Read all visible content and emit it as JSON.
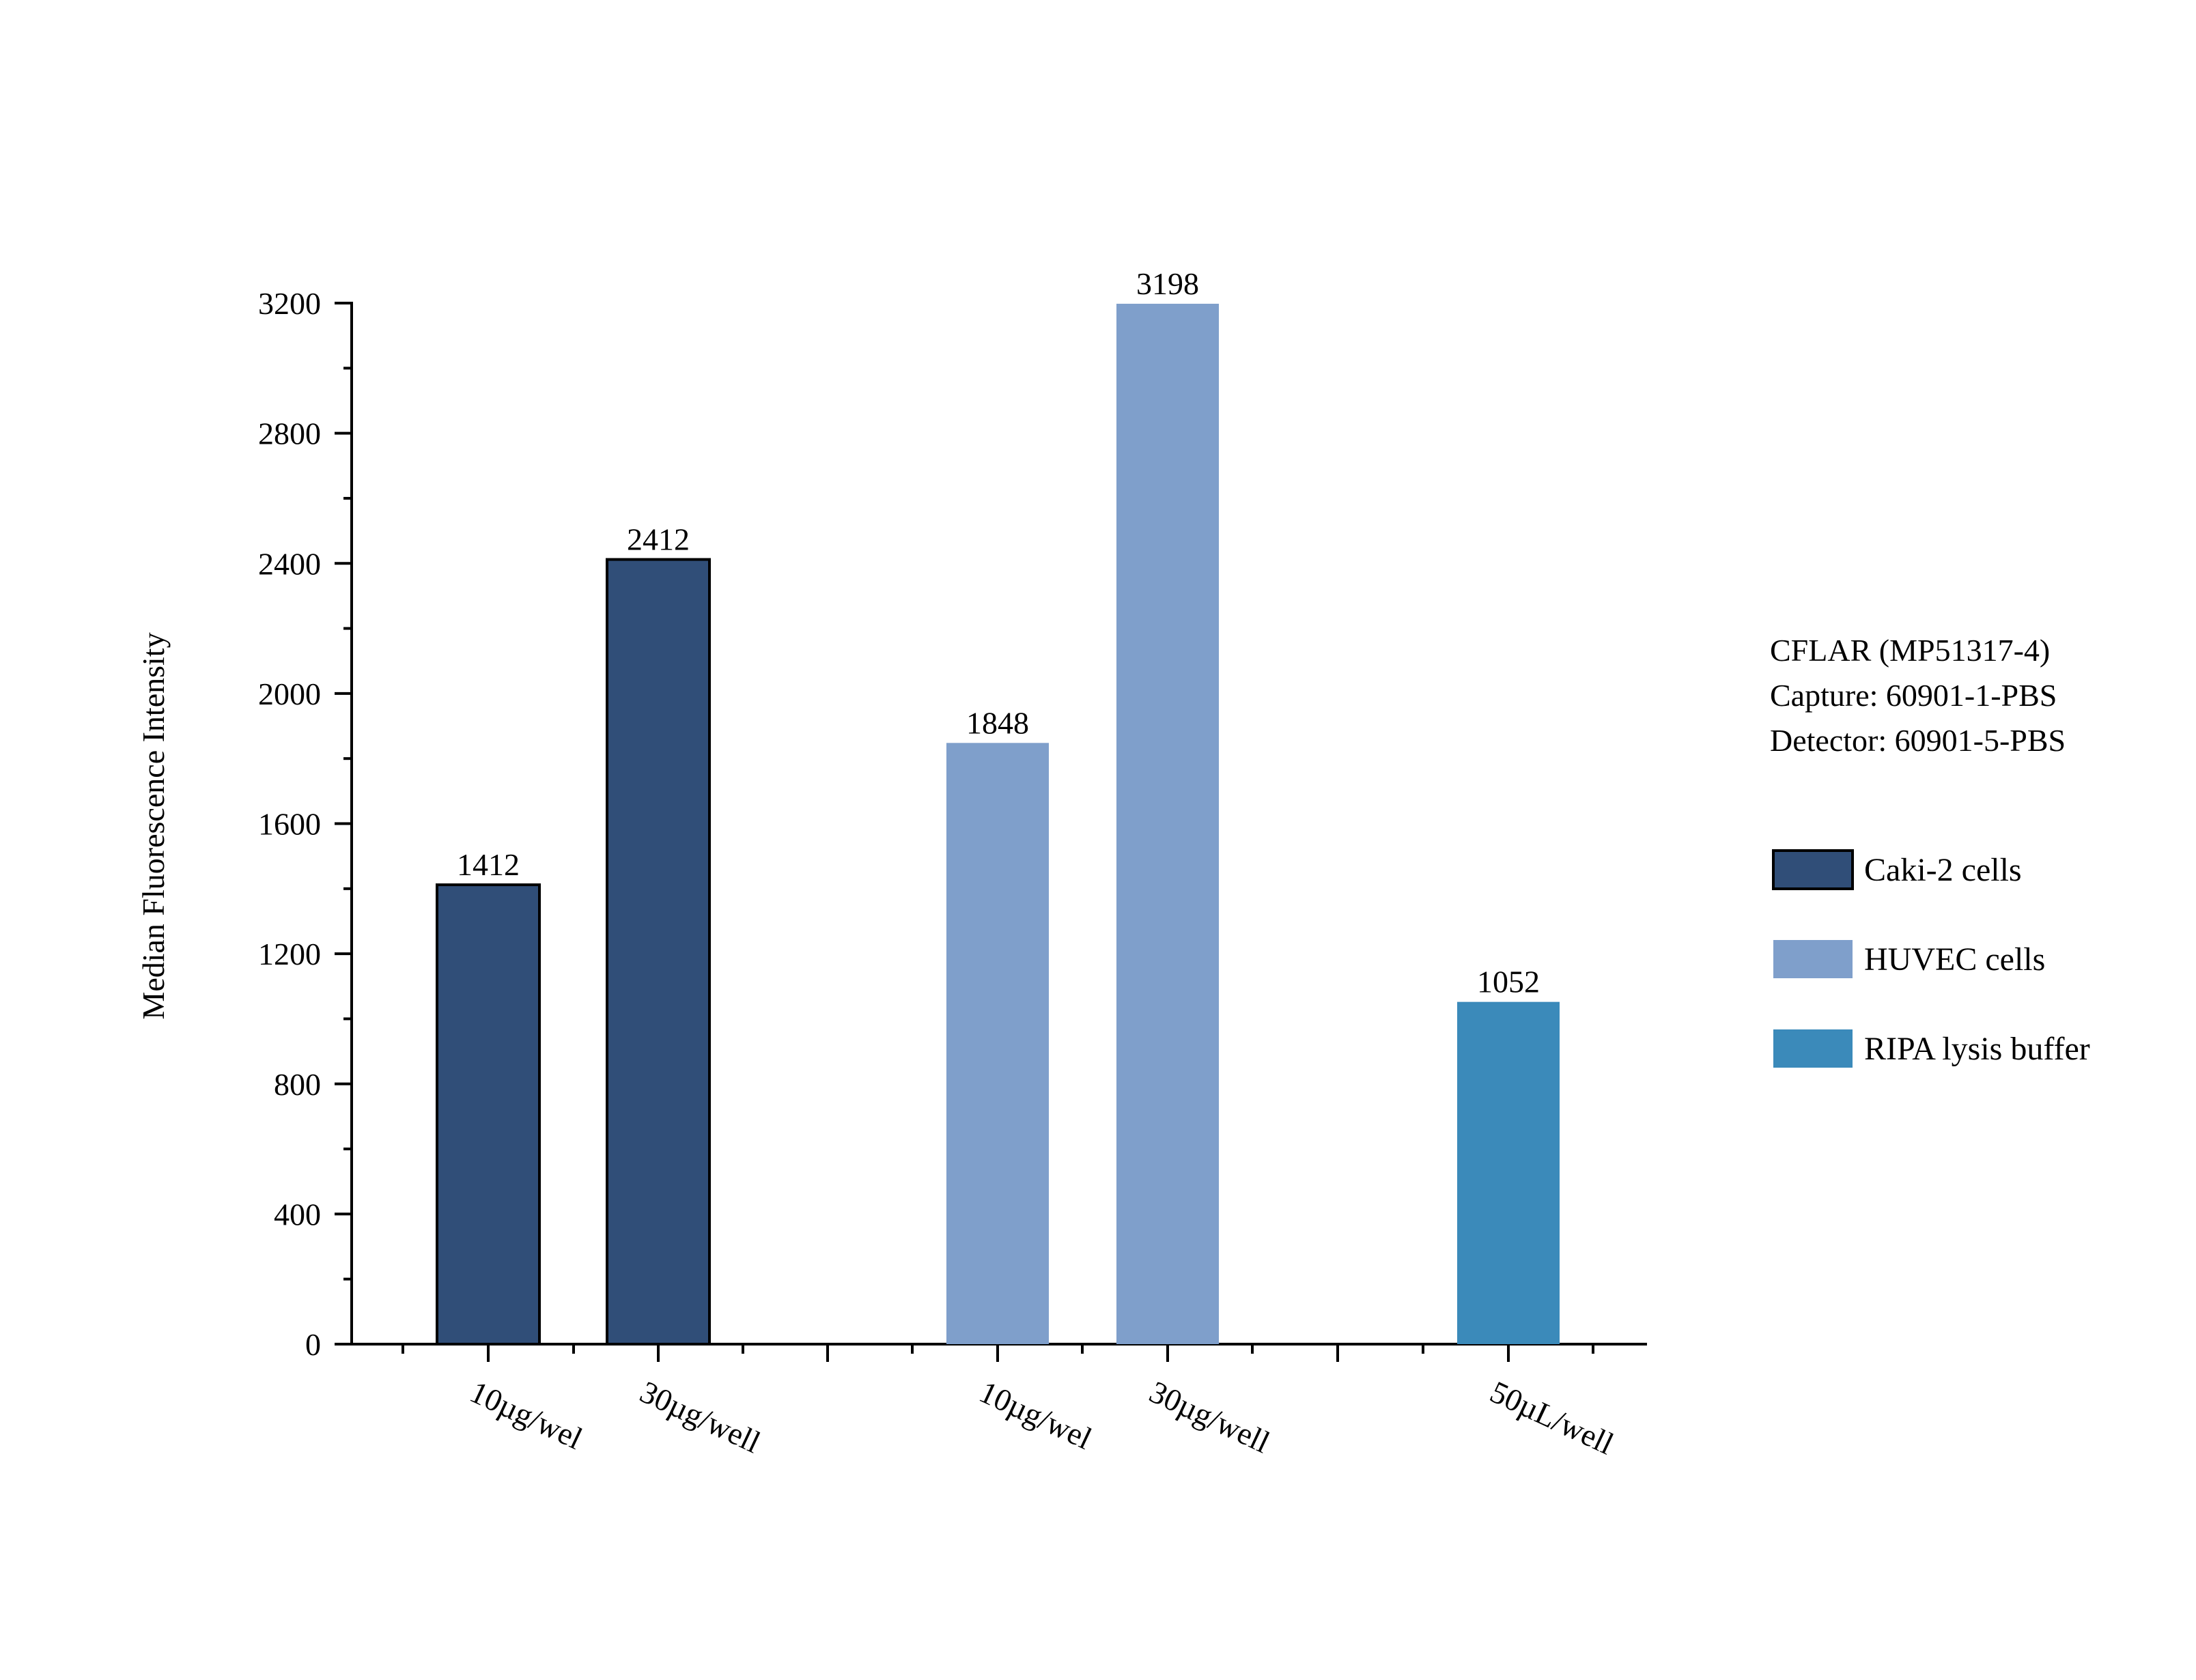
{
  "chart_data": {
    "type": "bar",
    "ylabel": "Median Fluorescence Intensity",
    "xlabel": "",
    "ylim": [
      0,
      3200
    ],
    "yticks": [
      0,
      400,
      800,
      1200,
      1600,
      2000,
      2400,
      2800,
      3200
    ],
    "categories": [
      "10µg/wel",
      "30µg/well",
      "10µg/wel",
      "30µg/well",
      "50µL/well"
    ],
    "series": [
      {
        "name": "Caki-2 cells",
        "color": "#304e78",
        "outlined": true,
        "values": [
          1412,
          2412,
          null,
          null,
          null
        ]
      },
      {
        "name": "HUVEC cells",
        "color": "#7f9fcb",
        "outlined": false,
        "values": [
          null,
          null,
          1848,
          3198,
          null
        ]
      },
      {
        "name": "RIPA lysis buffer",
        "color": "#3b8aba",
        "outlined": false,
        "values": [
          null,
          null,
          null,
          null,
          1052
        ]
      }
    ],
    "annotations": [
      "CFLAR (MP51317-4)",
      "Capture: 60901-1-PBS",
      "Detector: 60901-5-PBS"
    ],
    "grid": false,
    "legend_position": "right"
  }
}
